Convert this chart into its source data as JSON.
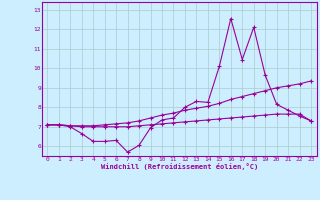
{
  "title": "",
  "xlabel": "Windchill (Refroidissement éolien,°C)",
  "ylabel": "",
  "bg_color": "#cceeff",
  "grid_color": "#aacccc",
  "line_color": "#990099",
  "xlim": [
    -0.5,
    23.5
  ],
  "ylim": [
    5.5,
    13.4
  ],
  "xticks": [
    0,
    1,
    2,
    3,
    4,
    5,
    6,
    7,
    8,
    9,
    10,
    11,
    12,
    13,
    14,
    15,
    16,
    17,
    18,
    19,
    20,
    21,
    22,
    23
  ],
  "yticks": [
    6,
    7,
    8,
    9,
    10,
    11,
    12,
    13
  ],
  "line1_x": [
    0,
    1,
    2,
    3,
    4,
    5,
    6,
    7,
    8,
    9,
    10,
    11,
    12,
    13,
    14,
    15,
    16,
    17,
    18,
    19,
    20,
    21,
    22,
    23
  ],
  "line1_y": [
    7.1,
    7.1,
    7.0,
    6.65,
    6.25,
    6.25,
    6.3,
    5.7,
    6.05,
    6.95,
    7.35,
    7.45,
    8.0,
    8.3,
    8.25,
    10.1,
    12.55,
    10.45,
    12.1,
    9.65,
    8.15,
    7.85,
    7.55,
    7.3
  ],
  "line2_x": [
    0,
    1,
    2,
    3,
    4,
    5,
    6,
    7,
    8,
    9,
    10,
    11,
    12,
    13,
    14,
    15,
    16,
    17,
    18,
    19,
    20,
    21,
    22,
    23
  ],
  "line2_y": [
    7.1,
    7.1,
    7.05,
    7.05,
    7.05,
    7.1,
    7.15,
    7.2,
    7.3,
    7.45,
    7.6,
    7.7,
    7.85,
    7.95,
    8.05,
    8.2,
    8.4,
    8.55,
    8.7,
    8.85,
    9.0,
    9.1,
    9.2,
    9.35
  ],
  "line3_x": [
    0,
    1,
    2,
    3,
    4,
    5,
    6,
    7,
    8,
    9,
    10,
    11,
    12,
    13,
    14,
    15,
    16,
    17,
    18,
    19,
    20,
    21,
    22,
    23
  ],
  "line3_y": [
    7.1,
    7.1,
    7.05,
    7.0,
    7.0,
    7.0,
    7.0,
    7.0,
    7.05,
    7.1,
    7.15,
    7.2,
    7.25,
    7.3,
    7.35,
    7.4,
    7.45,
    7.5,
    7.55,
    7.6,
    7.65,
    7.65,
    7.65,
    7.3
  ]
}
